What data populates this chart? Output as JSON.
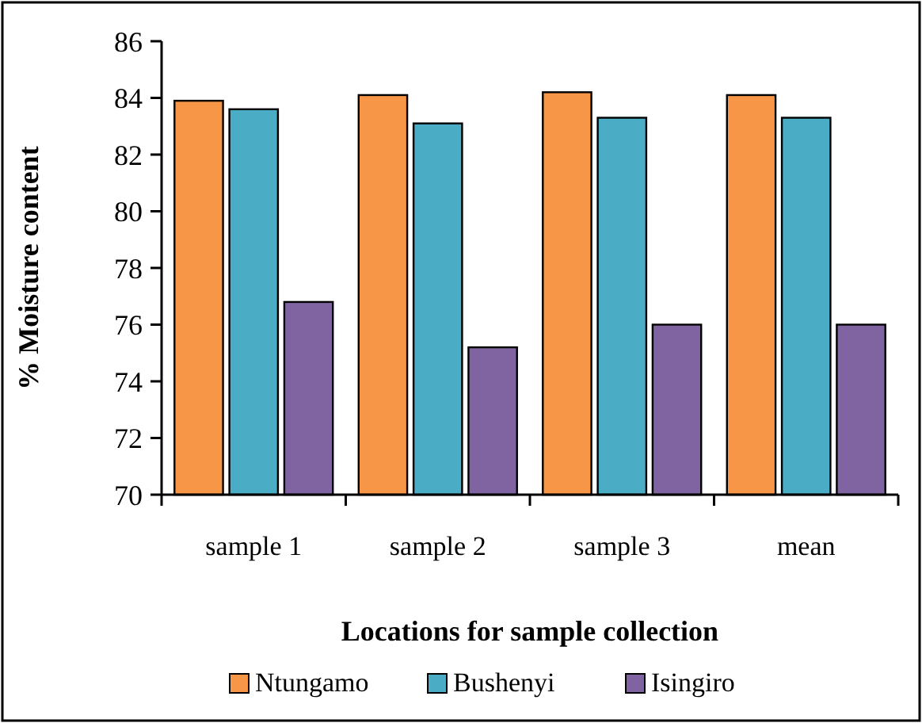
{
  "chart_data": {
    "type": "bar",
    "xlabel": "Locations for sample collection",
    "ylabel": "% Moisture content",
    "categories": [
      "sample 1",
      "sample 2",
      "sample 3",
      "mean"
    ],
    "series": [
      {
        "name": "Ntungamo",
        "color": "#f79646",
        "values": [
          83.9,
          84.1,
          84.2,
          84.1
        ]
      },
      {
        "name": "Bushenyi",
        "color": "#4bacc6",
        "values": [
          83.6,
          83.1,
          83.3,
          83.3
        ]
      },
      {
        "name": "Isingiro",
        "color": "#8064a2",
        "values": [
          76.8,
          75.2,
          76.0,
          76.0
        ]
      }
    ],
    "ylim": [
      70,
      86
    ],
    "yticks": [
      70,
      72,
      74,
      76,
      78,
      80,
      82,
      84,
      86
    ],
    "grid": false,
    "legend": "bottom"
  }
}
